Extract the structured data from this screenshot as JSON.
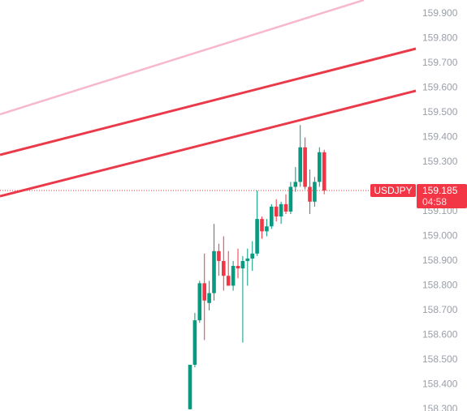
{
  "chart_data": {
    "type": "candlestick",
    "symbol": "USDJPY",
    "last_price": 159.185,
    "countdown": "04:58",
    "up_color": "#089981",
    "down_color": "#f23645",
    "open": [
      158.3,
      158.48,
      158.66,
      158.81,
      158.73,
      158.77,
      158.94,
      158.9,
      158.84,
      158.8,
      158.88,
      158.87,
      158.9,
      158.91,
      158.93,
      159.07,
      159.02,
      159.04,
      159.12,
      159.08,
      159.13,
      159.1,
      159.2,
      159.22,
      159.36,
      159.2,
      159.14,
      159.22,
      159.34
    ],
    "high": [
      158.48,
      158.69,
      158.82,
      158.93,
      158.82,
      159.05,
      158.97,
      159.0,
      158.94,
      158.9,
      158.95,
      158.92,
      158.95,
      158.98,
      159.185,
      159.08,
      159.07,
      159.13,
      159.15,
      159.14,
      159.17,
      159.22,
      159.28,
      159.45,
      159.4,
      159.27,
      159.24,
      159.36,
      159.35
    ],
    "low": [
      158.3,
      158.47,
      158.65,
      158.58,
      158.7,
      158.74,
      158.84,
      158.78,
      158.8,
      158.78,
      158.83,
      158.57,
      158.8,
      158.86,
      158.92,
      158.99,
      159.0,
      159.03,
      159.06,
      159.05,
      159.09,
      159.09,
      159.18,
      159.2,
      159.19,
      159.09,
      159.12,
      159.2,
      159.17
    ],
    "close": [
      158.48,
      158.66,
      158.81,
      158.74,
      158.77,
      158.94,
      158.9,
      158.84,
      158.8,
      158.88,
      158.87,
      158.9,
      158.91,
      158.93,
      159.07,
      159.02,
      159.04,
      159.12,
      159.08,
      159.13,
      159.1,
      159.2,
      159.22,
      159.36,
      159.2,
      159.14,
      159.22,
      159.34,
      159.185
    ],
    "ylim": [
      158.293,
      159.956
    ],
    "yticks": [
      {
        "value": 159.9,
        "label": "159.900"
      },
      {
        "value": 159.8,
        "label": "159.800"
      },
      {
        "value": 159.7,
        "label": "159.700"
      },
      {
        "value": 159.6,
        "label": "159.600"
      },
      {
        "value": 159.5,
        "label": "159.500"
      },
      {
        "value": 159.4,
        "label": "159.400"
      },
      {
        "value": 159.3,
        "label": "159.300"
      },
      {
        "value": 159.1,
        "label": "159.100"
      },
      {
        "value": 159.0,
        "label": "159.000"
      },
      {
        "value": 158.9,
        "label": "158.900"
      },
      {
        "value": 158.8,
        "label": "158.800"
      },
      {
        "value": 158.7,
        "label": "158.700"
      },
      {
        "value": 158.6,
        "label": "158.600"
      },
      {
        "value": 158.5,
        "label": "158.500"
      },
      {
        "value": 158.4,
        "label": "158.400"
      },
      {
        "value": 158.3,
        "label": "158.300"
      }
    ]
  }
}
